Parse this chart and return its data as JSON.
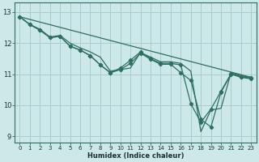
{
  "title": "",
  "xlabel": "Humidex (Indice chaleur)",
  "bg_color": "#cce8e8",
  "grid_color": "#aacccc",
  "line_color": "#2e7060",
  "xlim": [
    -0.5,
    23.5
  ],
  "ylim": [
    8.8,
    13.3
  ],
  "yticks": [
    9,
    10,
    11,
    12,
    13
  ],
  "xticks": [
    0,
    1,
    2,
    3,
    4,
    5,
    6,
    7,
    8,
    9,
    10,
    11,
    12,
    13,
    14,
    15,
    16,
    17,
    18,
    19,
    20,
    21,
    22,
    23
  ],
  "series": [
    {
      "x": [
        0,
        1,
        2,
        3,
        4,
        5,
        6,
        7,
        8,
        9,
        10,
        11,
        12,
        13,
        14,
        15,
        16,
        17,
        18,
        19,
        20,
        21,
        22,
        23
      ],
      "y": [
        12.85,
        12.6,
        12.45,
        12.2,
        12.25,
        12.0,
        11.85,
        11.72,
        11.55,
        11.1,
        11.15,
        11.2,
        11.7,
        11.55,
        11.4,
        11.4,
        11.35,
        11.1,
        9.15,
        9.85,
        9.9,
        11.05,
        10.95,
        10.9
      ],
      "marker": false,
      "linestyle": "-",
      "linewidth": 0.9
    },
    {
      "x": [
        0,
        1,
        2,
        3,
        4,
        5,
        6,
        7,
        8,
        9,
        10,
        11,
        12,
        13,
        14,
        15,
        16,
        17,
        18,
        19,
        20,
        21,
        22,
        23
      ],
      "y": [
        12.85,
        12.6,
        12.42,
        12.18,
        12.22,
        11.9,
        11.78,
        11.6,
        11.3,
        11.05,
        11.2,
        11.45,
        11.72,
        11.5,
        11.35,
        11.35,
        11.3,
        10.05,
        9.45,
        9.88,
        10.45,
        11.02,
        10.92,
        10.88
      ],
      "marker": true,
      "linestyle": "-",
      "linewidth": 0.9
    },
    {
      "x": [
        0,
        1,
        2,
        3,
        4,
        5,
        6,
        7,
        8,
        9,
        10,
        11,
        12,
        13,
        14,
        15,
        16,
        17,
        18,
        19,
        20,
        21,
        22,
        23
      ],
      "y": [
        12.85,
        12.6,
        12.42,
        12.18,
        12.22,
        11.9,
        11.78,
        11.6,
        11.3,
        11.05,
        11.15,
        11.35,
        11.68,
        11.48,
        11.32,
        11.32,
        11.05,
        10.8,
        9.55,
        9.3,
        10.42,
        11.0,
        10.9,
        10.85
      ],
      "marker": true,
      "linestyle": "-",
      "linewidth": 0.9
    },
    {
      "x": [
        0,
        23
      ],
      "y": [
        12.85,
        10.9
      ],
      "marker": false,
      "linestyle": "-",
      "linewidth": 0.9
    }
  ]
}
